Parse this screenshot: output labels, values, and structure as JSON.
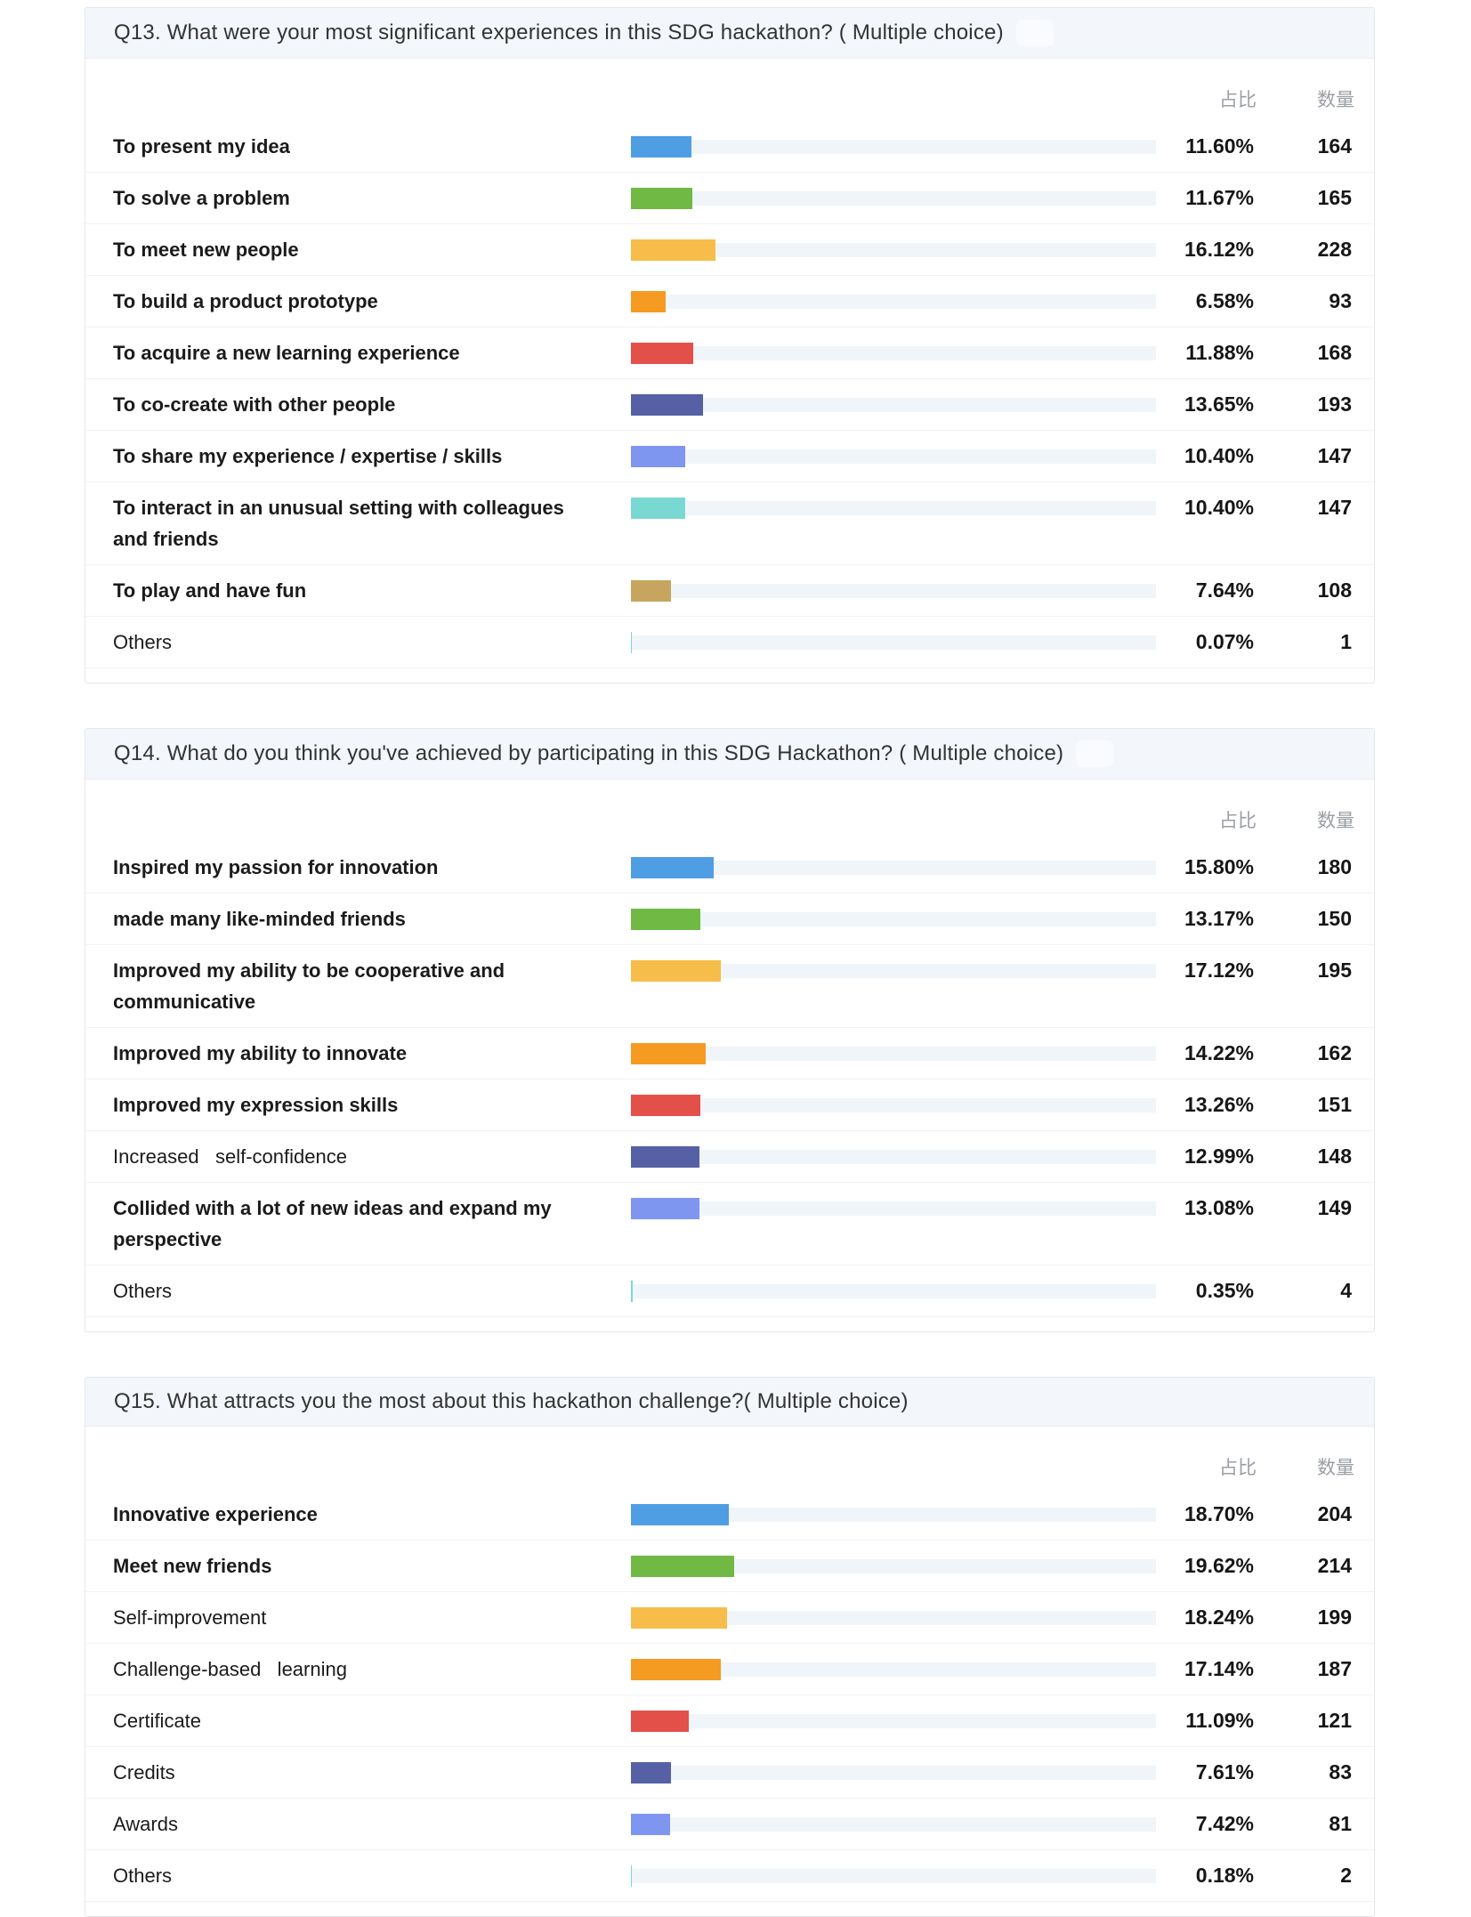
{
  "columns": {
    "percent": "占比",
    "count": "数量"
  },
  "panels": [
    {
      "title": "Q13. What were your most significant experiences in this SDG hackathon? ( Multiple choice)",
      "rows": [
        {
          "label": "To present my idea",
          "percent": "11.60%",
          "value": 11.6,
          "count": "164",
          "color": "#4f9ee3",
          "bold": true
        },
        {
          "label": "To solve a problem",
          "percent": "11.67%",
          "value": 11.67,
          "count": "165",
          "color": "#6fb944",
          "bold": true
        },
        {
          "label": "To meet new people",
          "percent": "16.12%",
          "value": 16.12,
          "count": "228",
          "color": "#f7bd4a",
          "bold": true
        },
        {
          "label": "To build a product prototype",
          "percent": "6.58%",
          "value": 6.58,
          "count": "93",
          "color": "#f59b22",
          "bold": true
        },
        {
          "label": "To acquire a new learning experience",
          "percent": "11.88%",
          "value": 11.88,
          "count": "168",
          "color": "#e35049",
          "bold": true
        },
        {
          "label": "To co-create with other people",
          "percent": "13.65%",
          "value": 13.65,
          "count": "193",
          "color": "#5560a5",
          "bold": true
        },
        {
          "label": "To share my experience / expertise / skills",
          "percent": "10.40%",
          "value": 10.4,
          "count": "147",
          "color": "#7e96f0",
          "bold": true
        },
        {
          "label": "To interact in an unusual setting with colleagues and friends",
          "percent": "10.40%",
          "value": 10.4,
          "count": "147",
          "color": "#7ad8d2",
          "bold": true
        },
        {
          "label": "To play and have fun",
          "percent": "7.64%",
          "value": 7.64,
          "count": "108",
          "color": "#c8a55e",
          "bold": true
        },
        {
          "label": "Others",
          "percent": "0.07%",
          "value": 0.07,
          "count": "1",
          "color": "#7ad8d2",
          "bold": false
        }
      ]
    },
    {
      "title": "Q14. What do you think you've achieved by participating in this SDG Hackathon? ( Multiple choice)",
      "rows": [
        {
          "label": "Inspired my passion for innovation",
          "percent": "15.80%",
          "value": 15.8,
          "count": "180",
          "color": "#4f9ee3",
          "bold": true
        },
        {
          "label": "made many like-minded friends",
          "percent": "13.17%",
          "value": 13.17,
          "count": "150",
          "color": "#6fb944",
          "bold": true
        },
        {
          "label": "Improved my ability to be cooperative and communicative",
          "percent": "17.12%",
          "value": 17.12,
          "count": "195",
          "color": "#f7bd4a",
          "bold": true
        },
        {
          "label": "Improved my ability to innovate",
          "percent": "14.22%",
          "value": 14.22,
          "count": "162",
          "color": "#f59b22",
          "bold": true
        },
        {
          "label": "Improved my expression skills",
          "percent": "13.26%",
          "value": 13.26,
          "count": "151",
          "color": "#e35049",
          "bold": true
        },
        {
          "label": "Increased   self-confidence",
          "percent": "12.99%",
          "value": 12.99,
          "count": "148",
          "color": "#5560a5",
          "bold": false
        },
        {
          "label": "Collided with a lot of new ideas and expand my perspective",
          "percent": "13.08%",
          "value": 13.08,
          "count": "149",
          "color": "#7e96f0",
          "bold": true
        },
        {
          "label": "Others",
          "percent": "0.35%",
          "value": 0.35,
          "count": "4",
          "color": "#7ad8d2",
          "bold": false
        }
      ]
    },
    {
      "title": "Q15. What attracts you the most about this hackathon challenge?( Multiple choice)",
      "rows": [
        {
          "label": "Innovative experience",
          "percent": "18.70%",
          "value": 18.7,
          "count": "204",
          "color": "#4f9ee3",
          "bold": true
        },
        {
          "label": "Meet new friends",
          "percent": "19.62%",
          "value": 19.62,
          "count": "214",
          "color": "#6fb944",
          "bold": true
        },
        {
          "label": "Self-improvement",
          "percent": "18.24%",
          "value": 18.24,
          "count": "199",
          "color": "#f7bd4a",
          "bold": false
        },
        {
          "label": "Challenge-based   learning",
          "percent": "17.14%",
          "value": 17.14,
          "count": "187",
          "color": "#f59b22",
          "bold": false
        },
        {
          "label": "Certificate",
          "percent": "11.09%",
          "value": 11.09,
          "count": "121",
          "color": "#e35049",
          "bold": false
        },
        {
          "label": "Credits",
          "percent": "7.61%",
          "value": 7.61,
          "count": "83",
          "color": "#5560a5",
          "bold": false
        },
        {
          "label": "Awards",
          "percent": "7.42%",
          "value": 7.42,
          "count": "81",
          "color": "#7e96f0",
          "bold": false
        },
        {
          "label": "Others",
          "percent": "0.18%",
          "value": 0.18,
          "count": "2",
          "color": "#7ad8d2",
          "bold": false
        }
      ]
    }
  ],
  "colors": {
    "palette": [
      "#4f9ee3",
      "#6fb944",
      "#f7bd4a",
      "#f59b22",
      "#e35049",
      "#5560a5",
      "#7e96f0",
      "#7ad8d2",
      "#c8a55e"
    ],
    "bar_track": "#f0f5f9",
    "header_background": "#f3f6fa"
  },
  "chart_data": [
    {
      "type": "bar",
      "orientation": "horizontal",
      "title": "Q13. What were your most significant experiences in this SDG hackathon? ( Multiple choice)",
      "categories": [
        "To present my idea",
        "To solve a problem",
        "To meet new people",
        "To build a product prototype",
        "To acquire a new learning experience",
        "To co-create with other people",
        "To share my experience / expertise / skills",
        "To interact in an unusual setting with colleagues and friends",
        "To play and have fun",
        "Others"
      ],
      "series": [
        {
          "name": "占比 (%)",
          "values": [
            11.6,
            11.67,
            16.12,
            6.58,
            11.88,
            13.65,
            10.4,
            10.4,
            7.64,
            0.07
          ]
        },
        {
          "name": "数量",
          "values": [
            164,
            165,
            228,
            93,
            168,
            193,
            147,
            147,
            108,
            1
          ]
        }
      ],
      "xlim": [
        0,
        100
      ],
      "grid": false,
      "legend": false
    },
    {
      "type": "bar",
      "orientation": "horizontal",
      "title": "Q14. What do you think you've achieved by participating in this SDG Hackathon? ( Multiple choice)",
      "categories": [
        "Inspired my passion for innovation",
        "made many like-minded friends",
        "Improved my ability to be cooperative and communicative",
        "Improved my ability to innovate",
        "Improved my expression skills",
        "Increased self-confidence",
        "Collided with a lot of new ideas and expand my perspective",
        "Others"
      ],
      "series": [
        {
          "name": "占比 (%)",
          "values": [
            15.8,
            13.17,
            17.12,
            14.22,
            13.26,
            12.99,
            13.08,
            0.35
          ]
        },
        {
          "name": "数量",
          "values": [
            180,
            150,
            195,
            162,
            151,
            148,
            149,
            4
          ]
        }
      ],
      "xlim": [
        0,
        100
      ],
      "grid": false,
      "legend": false
    },
    {
      "type": "bar",
      "orientation": "horizontal",
      "title": "Q15. What attracts you the most about this hackathon challenge?( Multiple choice)",
      "categories": [
        "Innovative experience",
        "Meet new friends",
        "Self-improvement",
        "Challenge-based learning",
        "Certificate",
        "Credits",
        "Awards",
        "Others"
      ],
      "series": [
        {
          "name": "占比 (%)",
          "values": [
            18.7,
            19.62,
            18.24,
            17.14,
            11.09,
            7.61,
            7.42,
            0.18
          ]
        },
        {
          "name": "数量",
          "values": [
            204,
            214,
            199,
            187,
            121,
            83,
            81,
            2
          ]
        }
      ],
      "xlim": [
        0,
        100
      ],
      "grid": false,
      "legend": false
    }
  ]
}
